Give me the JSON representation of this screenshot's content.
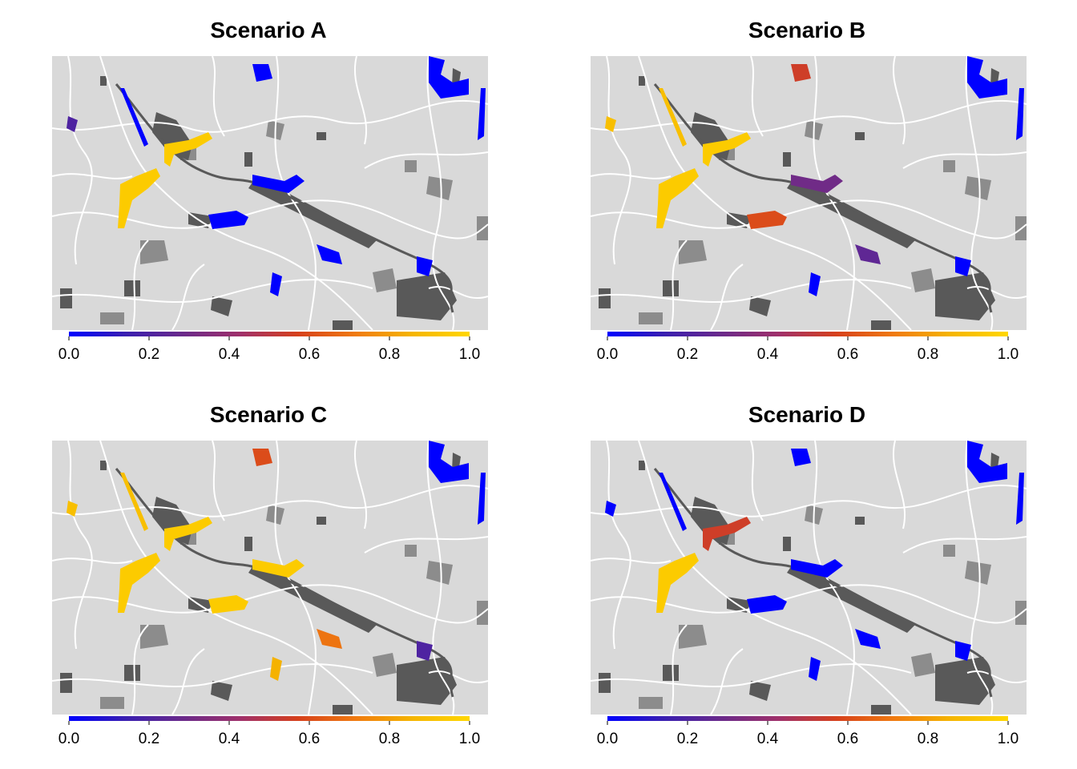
{
  "figure": {
    "legend_ticks": [
      "0.0",
      "0.2",
      "0.4",
      "0.6",
      "0.8",
      "1.0"
    ],
    "scale_min": 0.0,
    "scale_max": 1.0,
    "colors": {
      "background_land": "#d9d9d9",
      "roads": "#ffffff",
      "dark_patches": "#595959",
      "medium_patches": "#8c8c8c",
      "scale": [
        "#0000ff",
        "#3a1fb0",
        "#6b2a8a",
        "#a0306a",
        "#d6401c",
        "#f07a10",
        "#f5b500",
        "#ffd700"
      ]
    }
  },
  "panels": [
    {
      "title": "Scenario A",
      "patches": [
        {
          "id": "north-ne",
          "value": 0.0
        },
        {
          "id": "north-top",
          "value": 0.0
        },
        {
          "id": "east-right",
          "value": 0.0
        },
        {
          "id": "center-river",
          "value": 0.0
        },
        {
          "id": "center-south",
          "value": 0.0
        },
        {
          "id": "west-upper",
          "value": 0.2
        },
        {
          "id": "west-river",
          "value": 0.0
        },
        {
          "id": "nw-branch",
          "value": 0.95
        },
        {
          "id": "west-mid",
          "value": 0.95
        },
        {
          "id": "center-west",
          "value": 0.0
        },
        {
          "id": "south-east",
          "value": 0.0
        },
        {
          "id": "south-mid",
          "value": 0.0
        }
      ]
    },
    {
      "title": "Scenario B",
      "patches": [
        {
          "id": "north-ne",
          "value": 0.0
        },
        {
          "id": "north-top",
          "value": 0.55
        },
        {
          "id": "east-right",
          "value": 0.0
        },
        {
          "id": "center-river",
          "value": 0.3
        },
        {
          "id": "center-south",
          "value": 0.25
        },
        {
          "id": "west-upper",
          "value": 0.9
        },
        {
          "id": "west-river",
          "value": 0.9
        },
        {
          "id": "nw-branch",
          "value": 0.95
        },
        {
          "id": "west-mid",
          "value": 0.95
        },
        {
          "id": "center-west",
          "value": 0.6
        },
        {
          "id": "south-east",
          "value": 0.0
        },
        {
          "id": "south-mid",
          "value": 0.0
        }
      ]
    },
    {
      "title": "Scenario C",
      "patches": [
        {
          "id": "north-ne",
          "value": 0.0
        },
        {
          "id": "north-top",
          "value": 0.6
        },
        {
          "id": "east-right",
          "value": 0.0
        },
        {
          "id": "center-river",
          "value": 0.95
        },
        {
          "id": "center-south",
          "value": 0.7
        },
        {
          "id": "west-upper",
          "value": 0.9
        },
        {
          "id": "west-river",
          "value": 0.9
        },
        {
          "id": "nw-branch",
          "value": 0.95
        },
        {
          "id": "west-mid",
          "value": 0.95
        },
        {
          "id": "center-west",
          "value": 0.95
        },
        {
          "id": "south-east",
          "value": 0.2
        },
        {
          "id": "south-mid",
          "value": 0.85
        }
      ]
    },
    {
      "title": "Scenario D",
      "patches": [
        {
          "id": "north-ne",
          "value": 0.0
        },
        {
          "id": "north-top",
          "value": 0.0
        },
        {
          "id": "east-right",
          "value": 0.0
        },
        {
          "id": "center-river",
          "value": 0.0
        },
        {
          "id": "center-south",
          "value": 0.0
        },
        {
          "id": "west-upper",
          "value": 0.0
        },
        {
          "id": "west-river",
          "value": 0.0
        },
        {
          "id": "nw-branch",
          "value": 0.55
        },
        {
          "id": "west-mid",
          "value": 0.95
        },
        {
          "id": "center-west",
          "value": 0.0
        },
        {
          "id": "south-east",
          "value": 0.0
        },
        {
          "id": "south-mid",
          "value": 0.0
        }
      ]
    }
  ]
}
